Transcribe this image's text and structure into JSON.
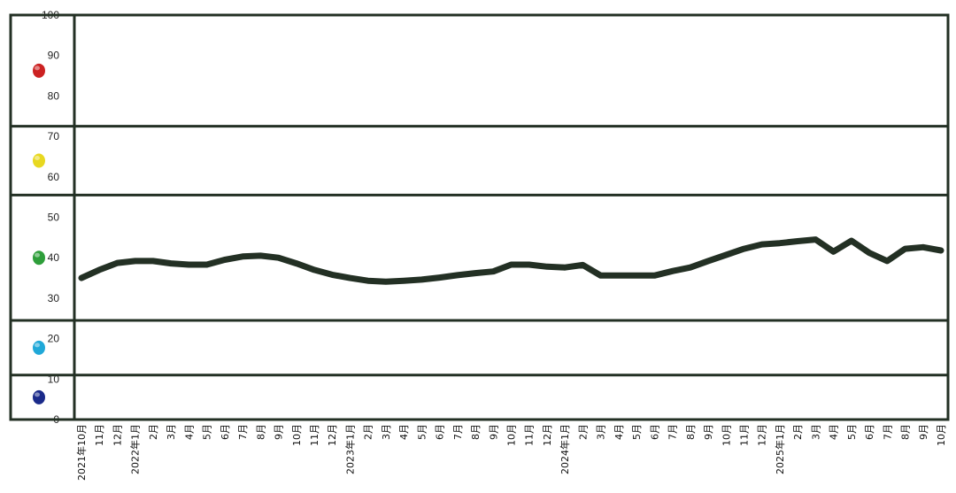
{
  "chart_data": {
    "type": "line",
    "ylim": [
      0,
      100
    ],
    "y_ticks": [
      "0",
      "10",
      "20",
      "30",
      "40",
      "50",
      "60",
      "70",
      "80",
      "90",
      "100"
    ],
    "grid": false,
    "line_color": "#233024",
    "zones": [
      {
        "from": 72.5,
        "to": 100,
        "dot_color": "#cc2222",
        "dot_icon": "red-dot-icon"
      },
      {
        "from": 55.5,
        "to": 72.5,
        "dot_color": "#e8d820",
        "dot_icon": "yellow-dot-icon"
      },
      {
        "from": 24.5,
        "to": 55.5,
        "dot_color": "#2e9e3a",
        "dot_icon": "green-dot-icon"
      },
      {
        "from": 11.0,
        "to": 24.5,
        "dot_color": "#20a8d8",
        "dot_icon": "cyan-dot-icon"
      },
      {
        "from": 0,
        "to": 11.0,
        "dot_color": "#1a2a8a",
        "dot_icon": "blue-dot-icon"
      }
    ],
    "categories": [
      "2021年10月",
      "11月",
      "12月",
      "2022年1月",
      "2月",
      "3月",
      "4月",
      "5月",
      "6月",
      "7月",
      "8月",
      "9月",
      "10月",
      "11月",
      "12月",
      "2023年1月",
      "2月",
      "3月",
      "4月",
      "5月",
      "6月",
      "7月",
      "8月",
      "9月",
      "10月",
      "11月",
      "12月",
      "2024年1月",
      "2月",
      "3月",
      "4月",
      "5月",
      "6月",
      "7月",
      "8月",
      "9月",
      "10月",
      "11月",
      "12月",
      "2025年1月",
      "2月",
      "3月",
      "4月",
      "5月",
      "6月",
      "7月",
      "8月",
      "9月",
      "10月"
    ],
    "values": [
      35.0,
      37.0,
      38.7,
      39.2,
      39.2,
      38.6,
      38.3,
      38.3,
      39.5,
      40.3,
      40.5,
      40.0,
      38.6,
      37.0,
      35.8,
      35.0,
      34.3,
      34.1,
      34.3,
      34.6,
      35.1,
      35.7,
      36.2,
      36.6,
      38.3,
      38.3,
      37.8,
      37.6,
      38.2,
      35.6,
      35.6,
      35.6,
      35.6,
      36.7,
      37.6,
      39.2,
      40.7,
      42.2,
      43.3,
      43.6,
      44.1,
      44.5,
      41.5,
      44.2,
      41.2,
      39.2,
      42.2,
      42.6,
      41.8
    ]
  }
}
